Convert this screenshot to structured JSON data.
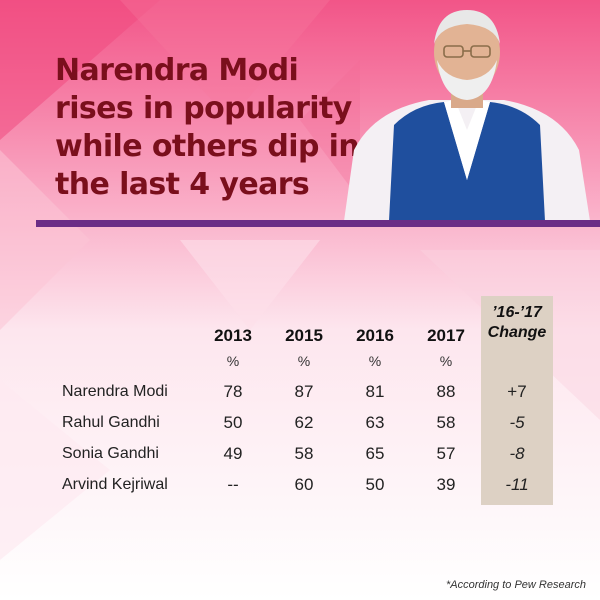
{
  "headline": {
    "lines": [
      "Narendra Modi",
      "rises in popularity",
      "while others dip in",
      "the last 4 years"
    ]
  },
  "footnote": "*According to Pew Research",
  "colors": {
    "headline": "#7a0f1c",
    "divider": "#6b2d86",
    "change_column": "#ddd1c4",
    "background_pink": "#f3518a"
  },
  "chart_data": {
    "type": "table",
    "title": "Narendra Modi rises in popularity while others dip in the last 4 years",
    "columns": [
      "2013",
      "2015",
      "2016",
      "2017"
    ],
    "units": [
      "%",
      "%",
      "%",
      "%"
    ],
    "change_header": [
      "’16-’17",
      "Change"
    ],
    "rows": [
      {
        "name": "Narendra Modi",
        "values": [
          "78",
          "87",
          "81",
          "88"
        ],
        "change": "+7"
      },
      {
        "name": "Rahul Gandhi",
        "values": [
          "50",
          "62",
          "63",
          "58"
        ],
        "change": "-5"
      },
      {
        "name": "Sonia Gandhi",
        "values": [
          "49",
          "58",
          "65",
          "57"
        ],
        "change": "-8"
      },
      {
        "name": "Arvind Kejriwal",
        "values": [
          "--",
          "60",
          "50",
          "39"
        ],
        "change": "-11"
      }
    ],
    "source": "*According to Pew Research"
  }
}
